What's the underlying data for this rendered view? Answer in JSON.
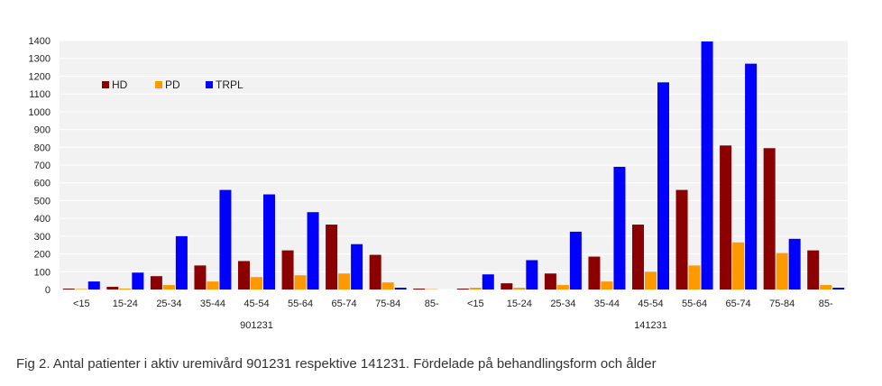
{
  "chart_data": {
    "type": "bar",
    "title": "",
    "xlabel": "",
    "ylabel": "",
    "ylim": [
      0,
      1400
    ],
    "yticks": [
      0,
      100,
      200,
      300,
      400,
      500,
      600,
      700,
      800,
      900,
      1000,
      1100,
      1200,
      1300,
      1400
    ],
    "grid": true,
    "legend": "top-left",
    "categories": [
      "<15",
      "15-24",
      "25-34",
      "35-44",
      "45-54",
      "55-64",
      "65-74",
      "75-84",
      "85-",
      "<15",
      "15-24",
      "25-34",
      "35-44",
      "45-54",
      "55-64",
      "65-74",
      "75-84",
      "85-"
    ],
    "groups": [
      {
        "label": "901231",
        "start": 0,
        "count": 9
      },
      {
        "label": "141231",
        "start": 9,
        "count": 9
      }
    ],
    "series": [
      {
        "name": "HD",
        "color": "#8b0000",
        "values": [
          5,
          15,
          75,
          135,
          160,
          220,
          365,
          195,
          5,
          5,
          35,
          90,
          185,
          365,
          560,
          810,
          795,
          220
        ]
      },
      {
        "name": "PD",
        "color": "#ff9900",
        "values": [
          3,
          5,
          25,
          45,
          70,
          80,
          90,
          40,
          2,
          10,
          10,
          25,
          45,
          100,
          135,
          265,
          205,
          25
        ]
      },
      {
        "name": "TRPL",
        "color": "#0000ff",
        "values": [
          45,
          95,
          300,
          560,
          535,
          435,
          255,
          10,
          0,
          85,
          165,
          325,
          690,
          1165,
          1395,
          1270,
          285,
          10
        ]
      }
    ]
  },
  "caption": "Fig 2. Antal patienter i aktiv uremivård 901231 respektive 141231. Fördelade på behandlingsform och ålder"
}
